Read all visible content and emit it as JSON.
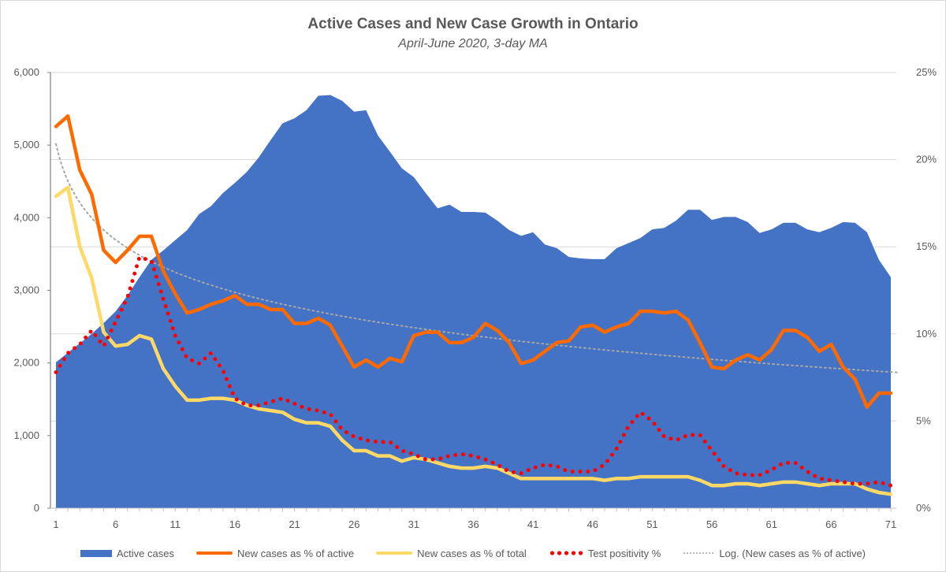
{
  "chart_data": {
    "type": "area",
    "title": "Active Cases and New Case Growth in Ontario",
    "subtitle": "April-June 2020, 3-day MA",
    "xlabel": "",
    "ylabel_left": "",
    "ylabel_right": "",
    "x": [
      1,
      2,
      3,
      4,
      5,
      6,
      7,
      8,
      9,
      10,
      11,
      12,
      13,
      14,
      15,
      16,
      17,
      18,
      19,
      20,
      21,
      22,
      23,
      24,
      25,
      26,
      27,
      28,
      29,
      30,
      31,
      32,
      33,
      34,
      35,
      36,
      37,
      38,
      39,
      40,
      41,
      42,
      43,
      44,
      45,
      46,
      47,
      48,
      49,
      50,
      51,
      52,
      53,
      54,
      55,
      56,
      57,
      58,
      59,
      60,
      61,
      62,
      63,
      64,
      65,
      66,
      67,
      68,
      69,
      70,
      71
    ],
    "x_tick_labels": [
      "1",
      "6",
      "11",
      "16",
      "21",
      "26",
      "31",
      "36",
      "41",
      "46",
      "51",
      "56",
      "61",
      "66",
      "71"
    ],
    "y_left": {
      "ylim": [
        0,
        6000
      ],
      "tick_labels": [
        "0",
        "1,000",
        "2,000",
        "3,000",
        "4,000",
        "5,000",
        "6,000"
      ]
    },
    "y_right": {
      "ylim": [
        0,
        25
      ],
      "tick_labels": [
        "0%",
        "5%",
        "10%",
        "15%",
        "20%",
        "25%"
      ]
    },
    "grid": true,
    "legend_position": "bottom",
    "series": [
      {
        "name": "Active cases",
        "type": "area",
        "axis": "left",
        "color": "#4472c4",
        "values": [
          2010,
          2140,
          2270,
          2400,
          2550,
          2710,
          2930,
          3180,
          3420,
          3550,
          3690,
          3830,
          4050,
          4160,
          4340,
          4480,
          4630,
          4830,
          5070,
          5300,
          5370,
          5480,
          5680,
          5690,
          5610,
          5460,
          5480,
          5130,
          4910,
          4680,
          4560,
          4340,
          4130,
          4180,
          4080,
          4080,
          4070,
          3960,
          3830,
          3750,
          3800,
          3630,
          3580,
          3460,
          3440,
          3430,
          3430,
          3580,
          3650,
          3720,
          3840,
          3860,
          3960,
          4110,
          4110,
          3970,
          4010,
          4010,
          3940,
          3790,
          3840,
          3930,
          3930,
          3840,
          3800,
          3860,
          3940,
          3930,
          3800,
          3420,
          3180
        ]
      },
      {
        "name": "New cases as % of active",
        "type": "line",
        "axis": "right",
        "color": "#ff6a00",
        "values": [
          21.9,
          22.5,
          19.4,
          18.0,
          14.8,
          14.1,
          14.8,
          15.6,
          15.6,
          13.6,
          12.3,
          11.2,
          11.4,
          11.7,
          11.9,
          12.2,
          11.7,
          11.7,
          11.4,
          11.4,
          10.6,
          10.6,
          10.9,
          10.5,
          9.3,
          8.1,
          8.5,
          8.1,
          8.6,
          8.4,
          9.9,
          10.1,
          10.1,
          9.5,
          9.5,
          9.8,
          10.6,
          10.2,
          9.5,
          8.3,
          8.5,
          9.0,
          9.5,
          9.6,
          10.4,
          10.5,
          10.1,
          10.4,
          10.6,
          11.3,
          11.3,
          11.2,
          11.3,
          10.8,
          9.5,
          8.1,
          8.0,
          8.5,
          8.8,
          8.5,
          9.1,
          10.2,
          10.2,
          9.8,
          9.0,
          9.4,
          8.1,
          7.4,
          5.8,
          6.6,
          6.6
        ]
      },
      {
        "name": "New cases as % of total",
        "type": "line",
        "axis": "right",
        "color": "#ffd966",
        "values": [
          17.9,
          18.4,
          15.0,
          13.2,
          10.1,
          9.3,
          9.4,
          9.9,
          9.7,
          8.0,
          7.0,
          6.2,
          6.2,
          6.3,
          6.3,
          6.2,
          5.9,
          5.7,
          5.6,
          5.5,
          5.1,
          4.9,
          4.9,
          4.7,
          3.9,
          3.3,
          3.3,
          3.0,
          3.0,
          2.7,
          2.9,
          2.8,
          2.6,
          2.4,
          2.3,
          2.3,
          2.4,
          2.3,
          2.0,
          1.7,
          1.7,
          1.7,
          1.7,
          1.7,
          1.7,
          1.7,
          1.6,
          1.7,
          1.7,
          1.8,
          1.8,
          1.8,
          1.8,
          1.8,
          1.6,
          1.3,
          1.3,
          1.4,
          1.4,
          1.3,
          1.4,
          1.5,
          1.5,
          1.4,
          1.3,
          1.4,
          1.4,
          1.4,
          1.1,
          0.9,
          0.8
        ]
      },
      {
        "name": "Test positivity %",
        "type": "line",
        "style": "dotted",
        "axis": "right",
        "color": "#ff0000",
        "values": [
          7.8,
          8.9,
          9.4,
          10.2,
          9.3,
          10.7,
          12.1,
          14.4,
          14.2,
          12.0,
          9.9,
          8.6,
          8.3,
          8.9,
          7.9,
          6.3,
          5.9,
          5.9,
          6.1,
          6.3,
          6.0,
          5.7,
          5.6,
          5.4,
          4.5,
          4.1,
          3.9,
          3.8,
          3.8,
          3.3,
          3.1,
          2.8,
          2.8,
          3.0,
          3.1,
          3.0,
          2.8,
          2.5,
          2.1,
          2.0,
          2.3,
          2.5,
          2.4,
          2.1,
          2.1,
          2.1,
          2.5,
          3.4,
          4.7,
          5.5,
          5.0,
          4.1,
          3.9,
          4.2,
          4.2,
          3.3,
          2.4,
          2.0,
          1.9,
          1.9,
          2.2,
          2.6,
          2.6,
          2.1,
          1.7,
          1.6,
          1.5,
          1.4,
          1.4,
          1.5,
          1.3
        ]
      },
      {
        "name": "Log. (New cases as % of active)",
        "type": "trendline",
        "style": "dotted",
        "axis": "right",
        "color": "#a6a6a6",
        "model": "logarithmic",
        "coefficients": {
          "a": -3.07,
          "b": 20.9
        }
      }
    ]
  }
}
